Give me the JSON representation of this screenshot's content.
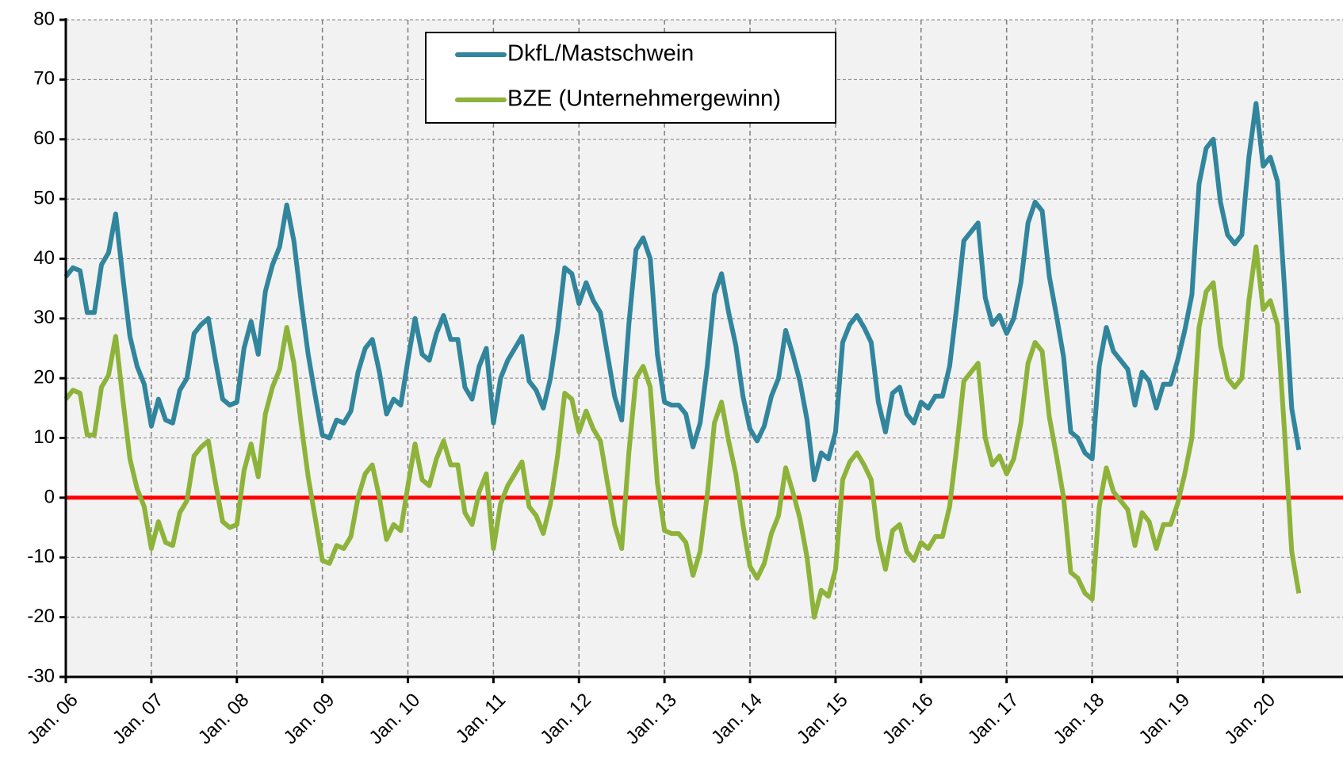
{
  "chart_data": {
    "type": "line",
    "categories": [
      "Jan. 06",
      null,
      null,
      null,
      null,
      null,
      null,
      null,
      null,
      null,
      null,
      null,
      "Jan. 07",
      null,
      null,
      null,
      null,
      null,
      null,
      null,
      null,
      null,
      null,
      null,
      "Jan. 08",
      null,
      null,
      null,
      null,
      null,
      null,
      null,
      null,
      null,
      null,
      null,
      "Jan. 09",
      null,
      null,
      null,
      null,
      null,
      null,
      null,
      null,
      null,
      null,
      null,
      "Jan. 10",
      null,
      null,
      null,
      null,
      null,
      null,
      null,
      null,
      null,
      null,
      null,
      "Jan. 11",
      null,
      null,
      null,
      null,
      null,
      null,
      null,
      null,
      null,
      null,
      null,
      "Jan. 12",
      null,
      null,
      null,
      null,
      null,
      null,
      null,
      null,
      null,
      null,
      null,
      "Jan. 13",
      null,
      null,
      null,
      null,
      null,
      null,
      null,
      null,
      null,
      null,
      null,
      "Jan. 14",
      null,
      null,
      null,
      null,
      null,
      null,
      null,
      null,
      null,
      null,
      null,
      "Jan. 15",
      null,
      null,
      null,
      null,
      null,
      null,
      null,
      null,
      null,
      null,
      null,
      "Jan. 16",
      null,
      null,
      null,
      null,
      null,
      null,
      null,
      null,
      null,
      null,
      null,
      "Jan. 17",
      null,
      null,
      null,
      null,
      null,
      null,
      null,
      null,
      null,
      null,
      null,
      "Jan. 18",
      null,
      null,
      null,
      null,
      null,
      null,
      null,
      null,
      null,
      null,
      null,
      "Jan. 19",
      null,
      null,
      null,
      null,
      null,
      null,
      null,
      null,
      null,
      null,
      null,
      "Jan. 20",
      null,
      null,
      null,
      null,
      null
    ],
    "series": [
      {
        "name": "DkfL/Mastschwein",
        "color": "#31859c",
        "values": [
          37,
          38.5,
          38,
          31,
          31,
          39,
          41,
          47.5,
          37,
          27,
          22,
          19,
          12,
          16.5,
          13,
          12.5,
          18,
          20,
          27.5,
          29,
          30,
          23,
          16.5,
          15.5,
          16,
          25,
          29.5,
          24,
          34.5,
          39,
          42,
          49,
          43,
          33,
          24,
          17,
          10.5,
          10,
          13,
          12.5,
          14.5,
          21,
          25,
          26.5,
          21,
          14,
          16.5,
          15.5,
          23,
          30,
          24,
          23,
          27.5,
          30.5,
          26.5,
          26.5,
          18.5,
          16.5,
          22,
          25,
          12.5,
          20,
          23,
          25,
          27,
          19.5,
          18,
          15,
          20,
          28,
          38.5,
          37.5,
          32.5,
          36,
          33,
          31,
          24,
          17,
          13,
          29,
          41.5,
          43.5,
          40,
          24,
          16,
          15.5,
          15.5,
          14,
          8.5,
          12.5,
          22,
          34,
          37.5,
          31,
          25.5,
          17,
          11.5,
          9.5,
          12,
          17,
          20,
          28,
          24,
          19.5,
          13,
          3,
          7.5,
          6.5,
          11,
          26,
          29,
          30.5,
          28.5,
          26,
          16,
          11,
          17.5,
          18.5,
          14,
          12.5,
          16,
          15,
          17,
          17,
          22,
          32,
          43,
          44.5,
          46,
          33.5,
          29,
          30.5,
          27.5,
          30,
          36,
          46,
          49.5,
          48,
          37,
          30.5,
          23.5,
          11,
          10,
          7.5,
          6.5,
          22,
          28.5,
          24.5,
          23,
          21.5,
          15.5,
          21,
          19.5,
          15,
          19,
          19,
          23,
          28,
          34,
          52.5,
          58.5,
          60,
          49.5,
          44,
          42.5,
          44,
          57,
          66,
          55.5,
          57,
          53,
          35,
          15,
          8
        ]
      },
      {
        "name": "BZE (Unternehmergewinn)",
        "color": "#8db33a",
        "values": [
          16.5,
          18,
          17.5,
          10.5,
          10.5,
          18.5,
          20.5,
          27,
          16.5,
          6.5,
          1.5,
          -1.5,
          -8.5,
          -4,
          -7.5,
          -8,
          -2.5,
          -0.5,
          7,
          8.5,
          9.5,
          2.5,
          -4,
          -5,
          -4.5,
          4.5,
          9,
          3.5,
          14,
          18.5,
          21.5,
          28.5,
          22.5,
          12.5,
          3.5,
          -3.5,
          -10.5,
          -11,
          -8,
          -8.5,
          -6.5,
          0,
          4,
          5.5,
          0,
          -7,
          -4.5,
          -5.5,
          2,
          9,
          3,
          2,
          6.5,
          9.5,
          5.5,
          5.5,
          -2.5,
          -4.5,
          1,
          4,
          -8.5,
          -1,
          2,
          4,
          6,
          -1.5,
          -3,
          -6,
          -1,
          7,
          17.5,
          16.5,
          11,
          14.5,
          11.5,
          9.5,
          2.5,
          -4.5,
          -8.5,
          7.5,
          20,
          22,
          18.5,
          2.5,
          -5.5,
          -6,
          -6,
          -7.5,
          -13,
          -9,
          0.5,
          12.5,
          16,
          9.5,
          4,
          -4.5,
          -11.5,
          -13.5,
          -11,
          -6,
          -3,
          5,
          1,
          -3.5,
          -10,
          -20,
          -15.5,
          -16.5,
          -12,
          3,
          6,
          7.5,
          5.5,
          3,
          -7,
          -12,
          -5.5,
          -4.5,
          -9,
          -10.5,
          -7.5,
          -8.5,
          -6.5,
          -6.5,
          -1.5,
          8.5,
          19.5,
          21,
          22.5,
          10,
          5.5,
          7,
          4,
          6.5,
          12.5,
          22.5,
          26,
          24.5,
          13.5,
          7,
          0,
          -12.5,
          -13.5,
          -16,
          -17,
          -1.5,
          5,
          1,
          -0.5,
          -2,
          -8,
          -2.5,
          -4,
          -8.5,
          -4.5,
          -4.5,
          -1,
          4,
          10,
          28.5,
          34.5,
          36,
          25.5,
          20,
          18.5,
          20,
          33,
          42,
          31.5,
          33,
          29,
          11,
          -9,
          -16
        ]
      }
    ],
    "ylim": [
      -30,
      80
    ],
    "yticks": [
      -30,
      -20,
      -10,
      0,
      10,
      20,
      30,
      40,
      50,
      60,
      70,
      80
    ],
    "grid": true,
    "reference_line": {
      "value": 0,
      "color": "#ff0000"
    },
    "legend": "top"
  }
}
